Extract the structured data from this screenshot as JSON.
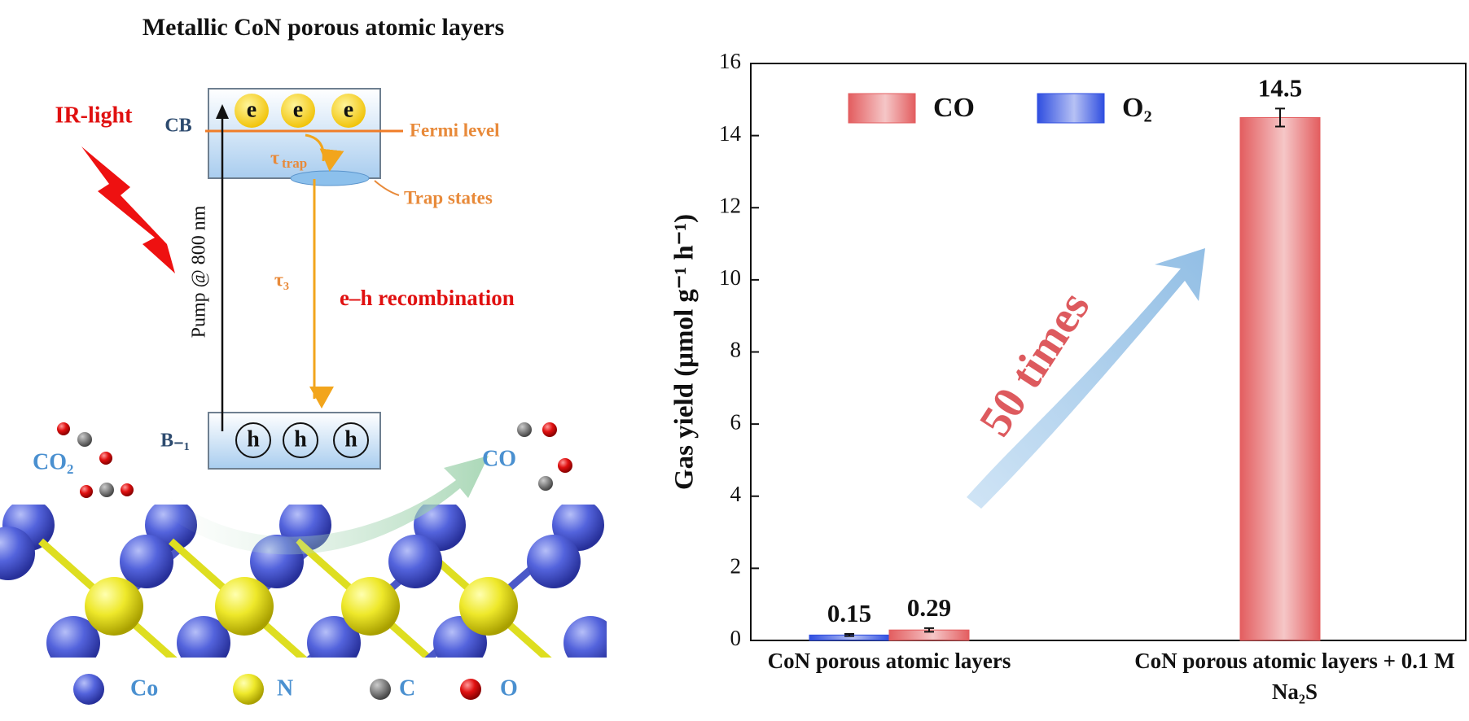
{
  "diagram": {
    "title": "Metallic CoN porous atomic layers",
    "light": "IR-light",
    "cb": "CB",
    "vb": "B₋₁",
    "electrons": [
      "e",
      "e",
      "e"
    ],
    "holes": [
      "h",
      "h",
      "h"
    ],
    "fermi": "Fermi level",
    "trap": "Trap states",
    "tau_trap": {
      "symbol": "τ",
      "subscript": "trap"
    },
    "tau3": "τ₃",
    "pump": "Pump @ 800 nm",
    "recombination": "e–h recombination",
    "reactant": "CO₂",
    "product": "CO",
    "atoms": [
      "Co",
      "N",
      "C",
      "O"
    ]
  },
  "chart_data": {
    "type": "bar",
    "y_label": "Gas yield (μmol g⁻¹ h⁻¹)",
    "categories": [
      "CoN porous atomic layers",
      "CoN porous atomic layers + 0.1 M Na₂S"
    ],
    "series": [
      {
        "name": "O₂",
        "color": "#2f4ee0",
        "values": [
          0.15,
          null
        ],
        "errors": [
          0.03,
          null
        ]
      },
      {
        "name": "CO",
        "color": "#e35d5f",
        "values": [
          0.29,
          14.5
        ],
        "errors": [
          0.05,
          0.25
        ]
      }
    ],
    "ylim": [
      0,
      16
    ],
    "yticks": [
      0,
      2,
      4,
      6,
      8,
      10,
      12,
      14,
      16
    ],
    "legend": "top-left",
    "annotation": "50 times"
  }
}
